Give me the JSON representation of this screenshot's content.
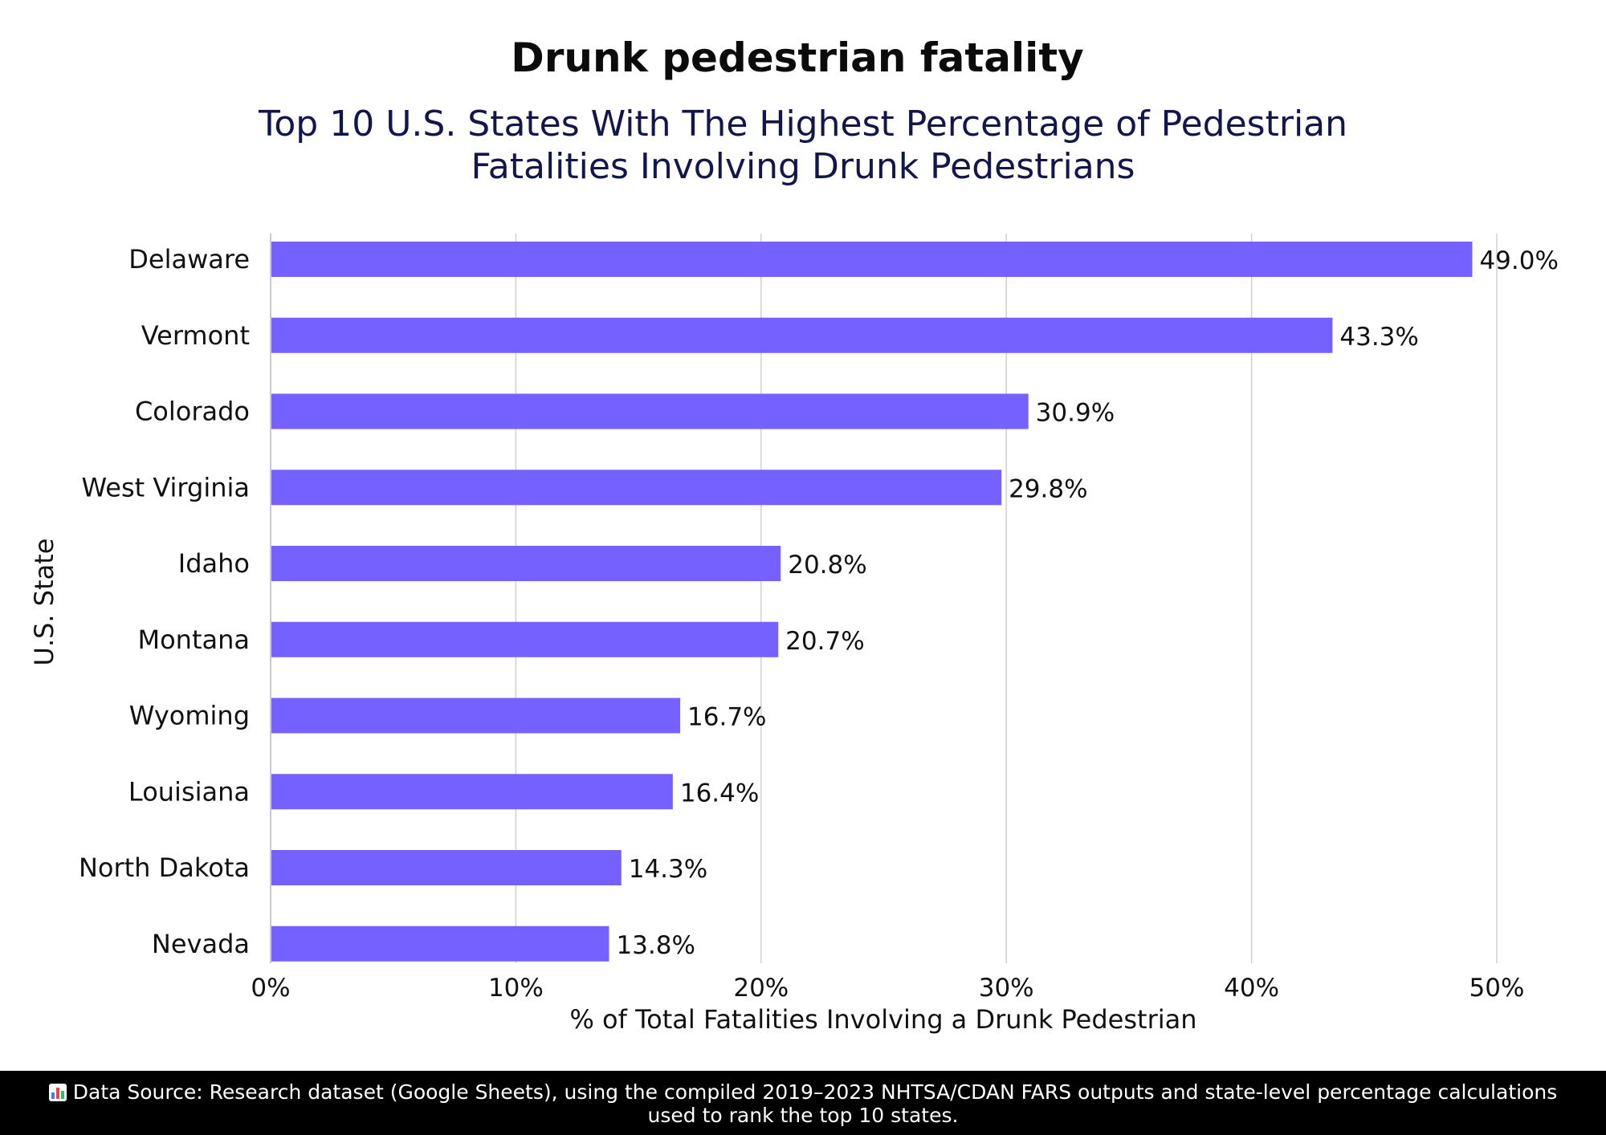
{
  "chart_data": {
    "type": "bar",
    "orientation": "horizontal",
    "title": "Drunk pedestrian fatality",
    "subtitle_lines": [
      "Top 10 U.S. States With The Highest Percentage of Pedestrian",
      "Fatalities Involving Drunk Pedestrians"
    ],
    "categories": [
      "Delaware",
      "Vermont",
      "Colorado",
      "West Virginia",
      "Idaho",
      "Montana",
      "Wyoming",
      "Louisiana",
      "North Dakota",
      "Nevada"
    ],
    "values": [
      49.0,
      43.3,
      30.9,
      29.8,
      20.8,
      20.7,
      16.7,
      16.4,
      14.3,
      13.8
    ],
    "value_labels": [
      "49.0%",
      "43.3%",
      "30.9%",
      "29.8%",
      "20.8%",
      "20.7%",
      "16.7%",
      "16.4%",
      "14.3%",
      "13.8%"
    ],
    "xlabel": "% of Total Fatalities Involving a Drunk Pedestrian",
    "ylabel": "U.S. State",
    "xlim": [
      0,
      50
    ],
    "xticks": [
      0,
      10,
      20,
      30,
      40,
      50
    ],
    "xtick_labels": [
      "0%",
      "10%",
      "20%",
      "30%",
      "40%",
      "50%"
    ],
    "grid": "vertical",
    "bar_color": "#7461ff"
  },
  "footer": {
    "icon": "bar-chart-icon",
    "lines": [
      "Data Source: Research dataset (Google Sheets), using the compiled 2019–2023 NHTSA/CDAN FARS outputs and state-level percentage calculations",
      "used to rank the top 10 states."
    ]
  }
}
